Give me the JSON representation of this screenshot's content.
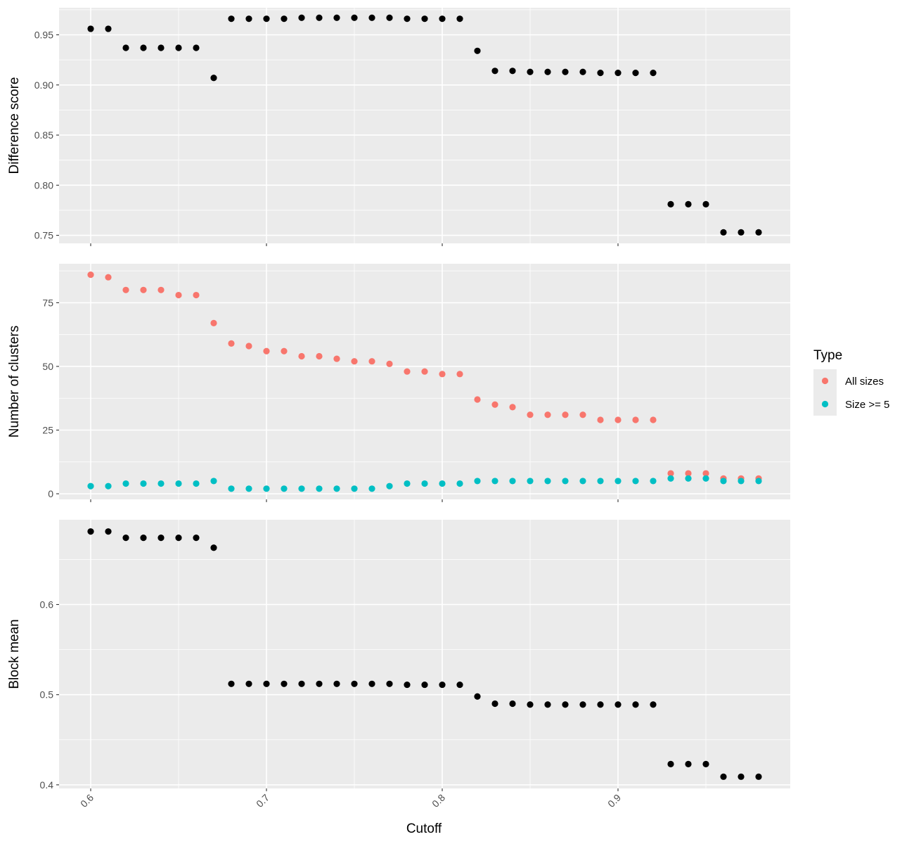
{
  "chart_data": {
    "type": "scatter",
    "x": [
      0.6,
      0.61,
      0.62,
      0.63,
      0.64,
      0.65,
      0.66,
      0.67,
      0.68,
      0.69,
      0.7,
      0.71,
      0.72,
      0.73,
      0.74,
      0.75,
      0.76,
      0.77,
      0.78,
      0.79,
      0.8,
      0.81,
      0.82,
      0.83,
      0.84,
      0.85,
      0.86,
      0.87,
      0.88,
      0.89,
      0.9,
      0.91,
      0.92,
      0.93,
      0.94,
      0.95,
      0.96,
      0.97,
      0.98
    ],
    "xlabel": "Cutoff",
    "xlim": [
      0.582,
      0.998
    ],
    "xticks": [
      0.6,
      0.7,
      0.8,
      0.9
    ],
    "xtick_labels": [
      "0.6",
      "0.7",
      "0.8",
      "0.9"
    ],
    "panels": [
      {
        "ylabel": "Difference score",
        "ylim": [
          0.742,
          0.977
        ],
        "yticks": [
          0.75,
          0.8,
          0.85,
          0.9,
          0.95
        ],
        "ytick_labels": [
          "0.75",
          "0.80",
          "0.85",
          "0.90",
          "0.95"
        ],
        "series": [
          {
            "color": "#000000",
            "values": [
              0.956,
              0.956,
              0.937,
              0.937,
              0.937,
              0.937,
              0.937,
              0.907,
              0.966,
              0.966,
              0.966,
              0.966,
              0.967,
              0.967,
              0.967,
              0.967,
              0.967,
              0.967,
              0.966,
              0.966,
              0.966,
              0.966,
              0.934,
              0.914,
              0.914,
              0.913,
              0.913,
              0.913,
              0.913,
              0.912,
              0.912,
              0.912,
              0.912,
              0.781,
              0.781,
              0.781,
              0.753,
              0.753,
              0.753
            ]
          }
        ]
      },
      {
        "ylabel": "Number of clusters",
        "ylim": [
          -2.2,
          90.3
        ],
        "yticks": [
          0,
          25,
          50,
          75
        ],
        "ytick_labels": [
          "0",
          "25",
          "50",
          "75"
        ],
        "series": [
          {
            "name": "All sizes",
            "color": "#f8766d",
            "values": [
              86,
              85,
              80,
              80,
              80,
              78,
              78,
              67,
              59,
              58,
              56,
              56,
              54,
              54,
              53,
              52,
              52,
              51,
              48,
              48,
              47,
              47,
              37,
              35,
              34,
              31,
              31,
              31,
              31,
              29,
              29,
              29,
              29,
              8,
              8,
              8,
              6,
              6,
              6
            ]
          },
          {
            "name": "Size >= 5",
            "color": "#00bfc4",
            "values": [
              3,
              3,
              4,
              4,
              4,
              4,
              4,
              5,
              2,
              2,
              2,
              2,
              2,
              2,
              2,
              2,
              2,
              3,
              4,
              4,
              4,
              4,
              5,
              5,
              5,
              5,
              5,
              5,
              5,
              5,
              5,
              5,
              5,
              6,
              6,
              6,
              5,
              5,
              5
            ]
          }
        ]
      },
      {
        "ylabel": "Block mean",
        "ylim": [
          0.396,
          0.694
        ],
        "yticks": [
          0.4,
          0.5,
          0.6
        ],
        "ytick_labels": [
          "0.4",
          "0.5",
          "0.6"
        ],
        "series": [
          {
            "color": "#000000",
            "values": [
              0.681,
              0.681,
              0.674,
              0.674,
              0.674,
              0.674,
              0.674,
              0.663,
              0.512,
              0.512,
              0.512,
              0.512,
              0.512,
              0.512,
              0.512,
              0.512,
              0.512,
              0.512,
              0.511,
              0.511,
              0.511,
              0.511,
              0.498,
              0.49,
              0.49,
              0.489,
              0.489,
              0.489,
              0.489,
              0.489,
              0.489,
              0.489,
              0.489,
              0.423,
              0.423,
              0.423,
              0.409,
              0.409,
              0.409
            ]
          }
        ]
      }
    ],
    "legend": {
      "title": "Type",
      "placement": "right",
      "items": [
        {
          "label": "All sizes",
          "color": "#f8766d"
        },
        {
          "label": "Size >= 5",
          "color": "#00bfc4"
        }
      ]
    },
    "grid": true
  }
}
